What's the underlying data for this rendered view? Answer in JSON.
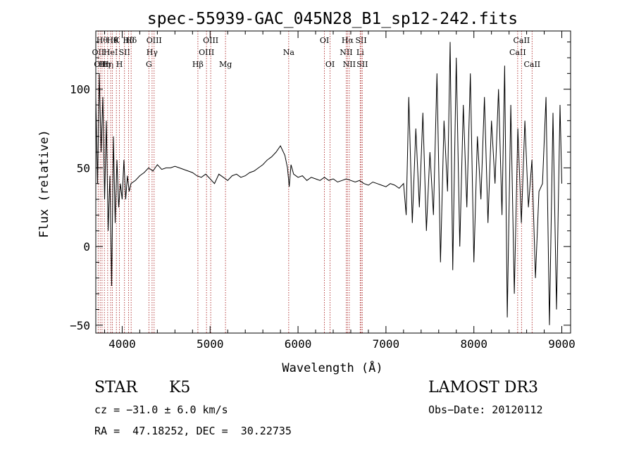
{
  "chart_data": {
    "type": "line",
    "title": "spec-55939-GAC_045N28_B1_sp12-242.fits",
    "xlabel": "Wavelength (Å)",
    "ylabel": "Flux (relative)",
    "xlim": [
      3700,
      9100
    ],
    "ylim": [
      -55,
      137
    ],
    "x_ticks": [
      4000,
      5000,
      6000,
      7000,
      8000,
      9000
    ],
    "y_ticks": [
      -50,
      0,
      50,
      100
    ],
    "grid": false,
    "line_color": "#000000",
    "marker_color": "#b03030",
    "series": [
      {
        "x": [
          3700,
          3720,
          3740,
          3760,
          3780,
          3800,
          3820,
          3840,
          3860,
          3880,
          3900,
          3920,
          3940,
          3960,
          3980,
          4000,
          4020,
          4040,
          4060,
          4080,
          4100,
          4150,
          4200,
          4250,
          4300,
          4350,
          4400,
          4450,
          4500,
          4550,
          4600,
          4650,
          4700,
          4750,
          4800,
          4850,
          4900,
          4950,
          5000,
          5050,
          5100,
          5150,
          5200,
          5250,
          5300,
          5350,
          5400,
          5450,
          5500,
          5550,
          5600,
          5650,
          5700,
          5750,
          5800,
          5850,
          5880,
          5900,
          5920,
          5950,
          6000,
          6050,
          6100,
          6150,
          6200,
          6250,
          6300,
          6350,
          6400,
          6450,
          6500,
          6550,
          6600,
          6650,
          6700,
          6750,
          6800,
          6850,
          6900,
          6950,
          7000,
          7050,
          7100,
          7150,
          7200,
          7230,
          7260,
          7300,
          7340,
          7380,
          7420,
          7460,
          7500,
          7540,
          7580,
          7620,
          7660,
          7700,
          7730,
          7760,
          7800,
          7840,
          7880,
          7920,
          7960,
          8000,
          8040,
          8080,
          8120,
          8160,
          8200,
          8240,
          8280,
          8320,
          8350,
          8380,
          8420,
          8460,
          8500,
          8540,
          8580,
          8620,
          8660,
          8700,
          8740,
          8780,
          8820,
          8860,
          8900,
          8940,
          8980,
          9000
        ],
        "y": [
          95,
          40,
          110,
          60,
          95,
          30,
          80,
          10,
          45,
          -25,
          70,
          15,
          55,
          25,
          40,
          30,
          55,
          30,
          45,
          35,
          40,
          42,
          45,
          47,
          50,
          48,
          52,
          49,
          50,
          50,
          51,
          50,
          49,
          48,
          47,
          45,
          44,
          46,
          43,
          40,
          46,
          44,
          42,
          45,
          46,
          44,
          45,
          47,
          48,
          50,
          52,
          55,
          57,
          60,
          64,
          58,
          50,
          38,
          52,
          46,
          44,
          45,
          42,
          44,
          43,
          42,
          44,
          42,
          43,
          41,
          42,
          43,
          42,
          41,
          42,
          40,
          39,
          41,
          40,
          39,
          38,
          40,
          39,
          37,
          40,
          20,
          95,
          15,
          75,
          25,
          85,
          10,
          60,
          20,
          110,
          -10,
          80,
          35,
          130,
          -15,
          120,
          0,
          90,
          25,
          110,
          -10,
          70,
          30,
          95,
          15,
          80,
          40,
          100,
          20,
          115,
          -45,
          90,
          -30,
          75,
          15,
          80,
          25,
          55,
          -20,
          35,
          40,
          95,
          -50,
          85,
          -40,
          90,
          40
        ]
      }
    ],
    "line_markers": [
      {
        "wl": 3727,
        "label": "OII",
        "row": 1
      },
      {
        "wl": 3750,
        "label": "OII",
        "row": 2
      },
      {
        "wl": 3771,
        "label": "Hθ",
        "row": 0
      },
      {
        "wl": 3798,
        "label": "Hη",
        "row": 2
      },
      {
        "wl": 3835,
        "label": "Hη",
        "row": 2
      },
      {
        "wl": 3869,
        "label": "HeI",
        "row": 1
      },
      {
        "wl": 3889,
        "label": "Hθ",
        "row": 0
      },
      {
        "wl": 3934,
        "label": "K",
        "row": 0
      },
      {
        "wl": 3969,
        "label": "H",
        "row": 2
      },
      {
        "wl": 4026,
        "label": "SII",
        "row": 1
      },
      {
        "wl": 4072,
        "label": "Hδ",
        "row": 0
      },
      {
        "wl": 4102,
        "label": "Hδ",
        "row": 0
      },
      {
        "wl": 4304,
        "label": "G",
        "row": 2
      },
      {
        "wl": 4340,
        "label": "Hγ",
        "row": 1
      },
      {
        "wl": 4363,
        "label": "OIII",
        "row": 0
      },
      {
        "wl": 4861,
        "label": "Hβ",
        "row": 2
      },
      {
        "wl": 4959,
        "label": "OIII",
        "row": 1
      },
      {
        "wl": 5007,
        "label": "OIII",
        "row": 0
      },
      {
        "wl": 5175,
        "label": "Mg",
        "row": 2
      },
      {
        "wl": 5894,
        "label": "Na",
        "row": 1
      },
      {
        "wl": 6300,
        "label": "OI",
        "row": 0
      },
      {
        "wl": 6364,
        "label": "OI",
        "row": 2
      },
      {
        "wl": 6548,
        "label": "NII",
        "row": 1
      },
      {
        "wl": 6563,
        "label": "Hα",
        "row": 0
      },
      {
        "wl": 6583,
        "label": "NII",
        "row": 2
      },
      {
        "wl": 6707,
        "label": "Li",
        "row": 1
      },
      {
        "wl": 6717,
        "label": "SII",
        "row": 0
      },
      {
        "wl": 6731,
        "label": "SII",
        "row": 2
      },
      {
        "wl": 8498,
        "label": "CaII",
        "row": 1
      },
      {
        "wl": 8542,
        "label": "CaII",
        "row": 0
      },
      {
        "wl": 8662,
        "label": "CaII",
        "row": 2
      }
    ]
  },
  "info": {
    "class_label": "STAR",
    "subclass": "K5",
    "survey": "LAMOST DR3",
    "cz": "cz = −31.0 ± 6.0 km/s",
    "obs_date": "Obs−Date: 20120112",
    "coords": "RA =  47.18252, DEC =  30.22735"
  }
}
